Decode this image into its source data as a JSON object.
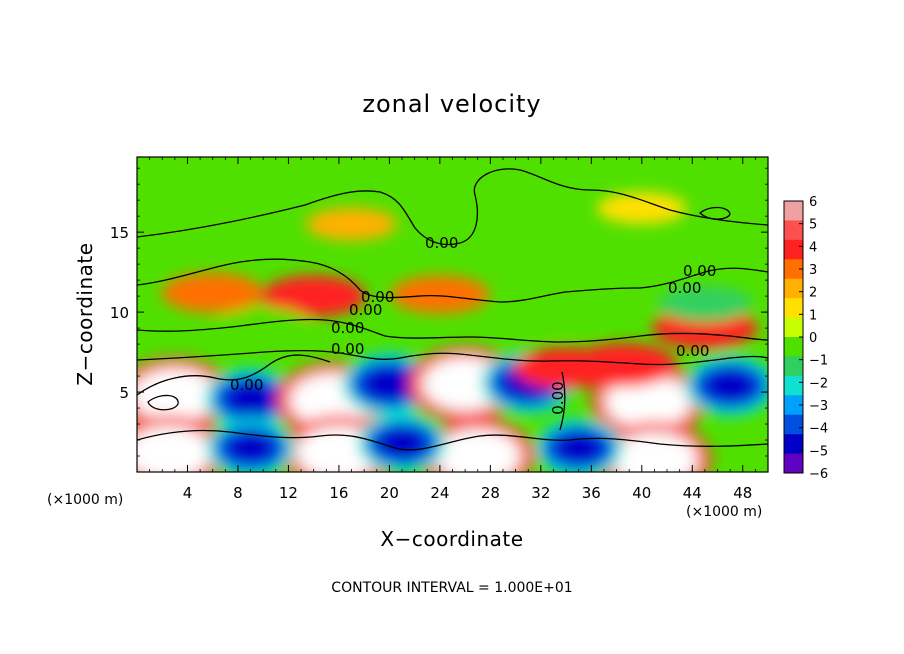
{
  "chart_data": {
    "type": "heatmap",
    "title": "zonal velocity",
    "xlabel": "X−coordinate",
    "ylabel": "Z−coordinate",
    "x_units": "(×1000 m)",
    "y_units": "(×1000 m)",
    "xlim": [
      0,
      50
    ],
    "ylim": [
      0,
      19.7
    ],
    "x_ticks": [
      4,
      8,
      12,
      16,
      20,
      24,
      28,
      32,
      36,
      40,
      44,
      48
    ],
    "y_ticks": [
      5,
      10,
      15
    ],
    "colorbar": {
      "range": [
        -6,
        6
      ],
      "ticks": [
        "6",
        "5",
        "4",
        "3",
        "2",
        "1",
        "0",
        "−1",
        "−2",
        "−3",
        "−4",
        "−5",
        "−6"
      ],
      "colors": [
        "#f0a0a0",
        "#ff5050",
        "#ff2020",
        "#ff7000",
        "#ffb000",
        "#ffe000",
        "#c8ff00",
        "#50e000",
        "#30d060",
        "#10e0d0",
        "#00a0ff",
        "#0050e0",
        "#0000c8",
        "#6000c0"
      ]
    },
    "contour_labels": [
      "0.00",
      "0.00",
      "0.00",
      "0.00",
      "0.00",
      "0.00",
      "0.00",
      "0.00",
      "0.00",
      "0.00"
    ],
    "features": [
      {
        "x": 3,
        "z": 4.8,
        "value": 7
      },
      {
        "x": 9,
        "z": 4.6,
        "value": -4.5
      },
      {
        "x": 15.5,
        "z": 4.5,
        "value": 7
      },
      {
        "x": 20,
        "z": 5.5,
        "value": -5
      },
      {
        "x": 26,
        "z": 5.5,
        "value": 7
      },
      {
        "x": 31,
        "z": 5.6,
        "value": -5
      },
      {
        "x": 40.5,
        "z": 4.4,
        "value": 7
      },
      {
        "x": 47,
        "z": 5.4,
        "value": -4.5
      },
      {
        "x": 2.5,
        "z": 1.2,
        "value": 7
      },
      {
        "x": 16,
        "z": 1.2,
        "value": 7
      },
      {
        "x": 27,
        "z": 1.0,
        "value": 7
      },
      {
        "x": 41,
        "z": 0.8,
        "value": 7
      },
      {
        "x": 9,
        "z": 1.5,
        "value": -4
      },
      {
        "x": 21,
        "z": 1.8,
        "value": -4
      },
      {
        "x": 35,
        "z": 1.5,
        "value": -4
      },
      {
        "x": 6,
        "z": 11.2,
        "value": 3
      },
      {
        "x": 14,
        "z": 11.0,
        "value": 3.5
      },
      {
        "x": 24,
        "z": 11.1,
        "value": 2.5
      },
      {
        "x": 45,
        "z": 9.0,
        "value": 3.5
      },
      {
        "x": 10,
        "z": 9.2,
        "value": -1.8
      },
      {
        "x": 33,
        "z": 9.8,
        "value": -1.2
      },
      {
        "x": 45,
        "z": 10.5,
        "value": -2
      },
      {
        "x": 34,
        "z": 6.5,
        "value": 3.5
      },
      {
        "x": 38.5,
        "z": 6.7,
        "value": 4
      },
      {
        "x": 17,
        "z": 15.5,
        "value": 1.2
      },
      {
        "x": 40,
        "z": 16.5,
        "value": 1
      }
    ],
    "footer": "CONTOUR INTERVAL = 1.000E+01"
  }
}
